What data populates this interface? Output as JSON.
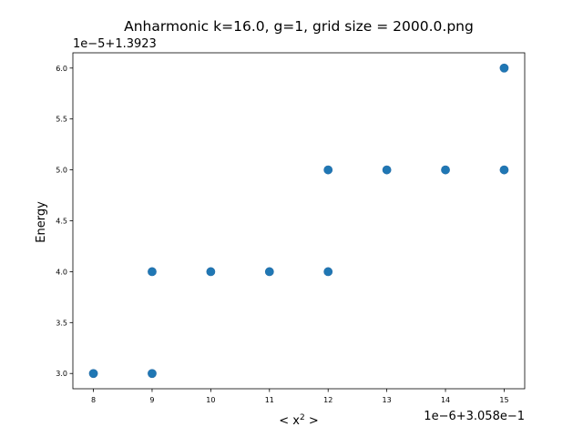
{
  "chart_data": {
    "type": "scatter",
    "title": "Anharmonic  k=16.0, g=1, grid size = 2000.0.png",
    "xlabel": "< x",
    "xlabel_superscript": "2",
    "xlabel_suffix": " >",
    "ylabel": "Energy",
    "x_offset_label": "1e−6+3.058e−1",
    "y_offset_label": "1e−5+1.3923",
    "x_ticks": [
      "8",
      "9",
      "10",
      "11",
      "12",
      "13",
      "14",
      "15"
    ],
    "y_ticks": [
      "3.0",
      "3.5",
      "4.0",
      "4.5",
      "5.0",
      "5.5",
      "6.0"
    ],
    "xlim": [
      7.65,
      15.35
    ],
    "ylim": [
      2.85,
      6.15
    ],
    "grid": false,
    "marker_color": "#1f77b4",
    "points": [
      {
        "x": 8,
        "y": 3.0
      },
      {
        "x": 9,
        "y": 3.0
      },
      {
        "x": 9,
        "y": 4.0
      },
      {
        "x": 10,
        "y": 4.0
      },
      {
        "x": 11,
        "y": 4.0
      },
      {
        "x": 12,
        "y": 4.0
      },
      {
        "x": 12,
        "y": 5.0
      },
      {
        "x": 13,
        "y": 5.0
      },
      {
        "x": 14,
        "y": 5.0
      },
      {
        "x": 15,
        "y": 5.0
      },
      {
        "x": 15,
        "y": 6.0
      }
    ]
  }
}
